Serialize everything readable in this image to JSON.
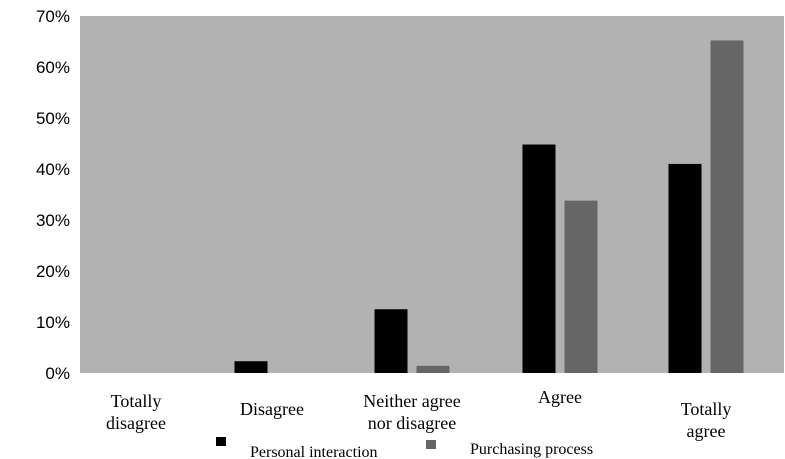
{
  "chart_data": {
    "type": "bar",
    "categories": [
      [
        "Totally",
        "disagree"
      ],
      [
        "Disagree"
      ],
      [
        "Neither agree",
        "nor disagree"
      ],
      [
        "Agree"
      ],
      [
        "Totally",
        "agree"
      ]
    ],
    "series": [
      {
        "name": "Personal interaction",
        "color": "#000000",
        "values": [
          0,
          2.3,
          12.5,
          44.8,
          41.0
        ]
      },
      {
        "name": "Purchasing process",
        "color": "#666666",
        "values": [
          0,
          0,
          1.4,
          33.8,
          65.2
        ]
      }
    ],
    "ylim": [
      0,
      70
    ],
    "yticks": [
      "0%",
      "10%",
      "20%",
      "30%",
      "40%",
      "50%",
      "60%",
      "70%"
    ],
    "plot_background": "#b2b2b2",
    "grid": false,
    "legend_position": "bottom"
  }
}
